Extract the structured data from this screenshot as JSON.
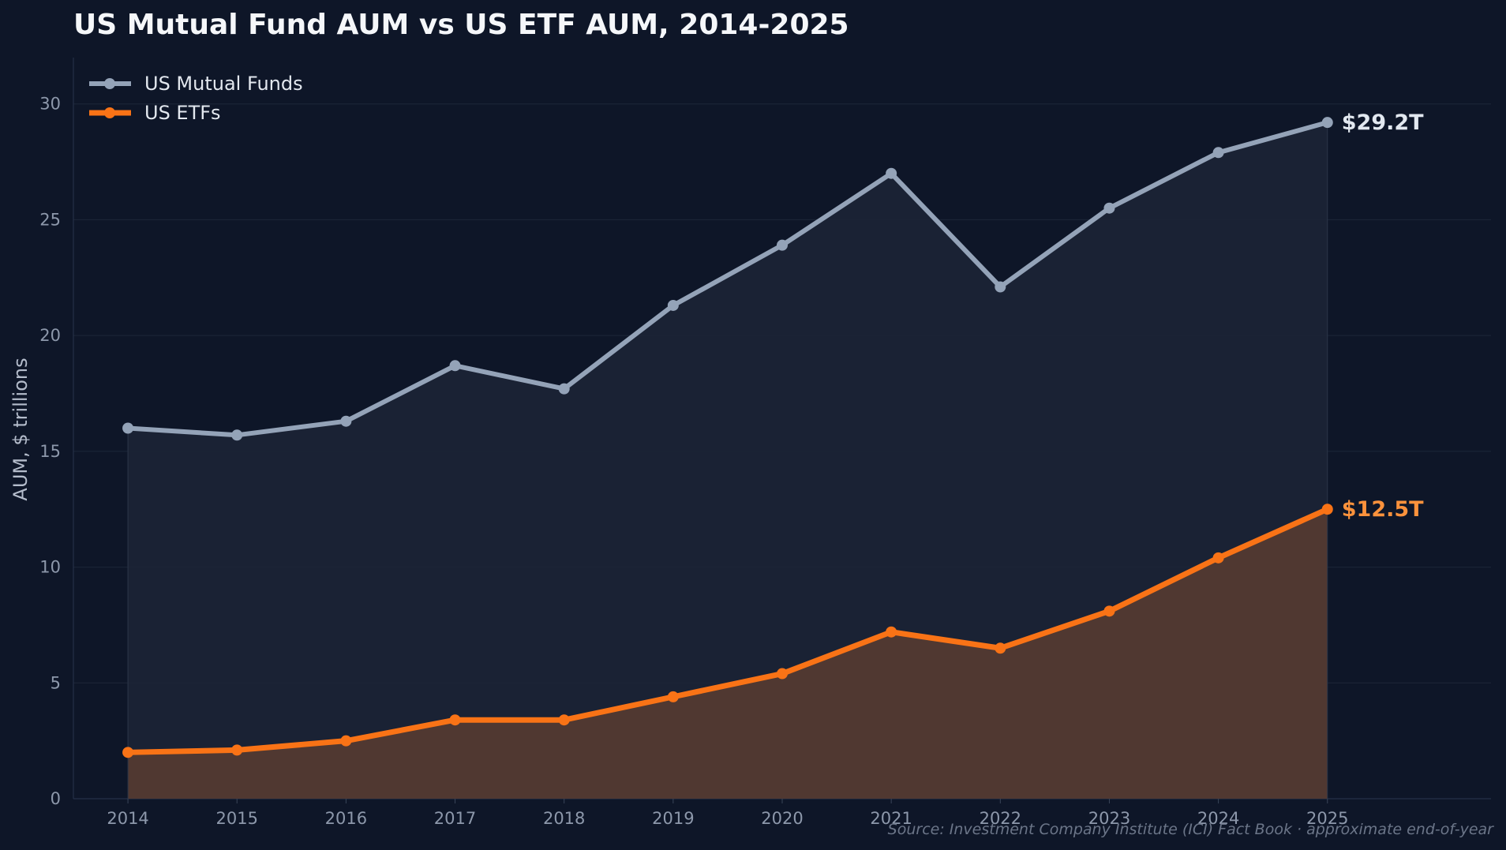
{
  "chart_data": {
    "type": "area",
    "title": "US Mutual Fund AUM vs US ETF AUM, 2014-2025",
    "xlabel": "",
    "ylabel": "AUM, $ trillions",
    "x": [
      2014,
      2015,
      2016,
      2017,
      2018,
      2019,
      2020,
      2021,
      2022,
      2023,
      2024,
      2025
    ],
    "xticks": [
      "2014",
      "2015",
      "2016",
      "2017",
      "2018",
      "2019",
      "2020",
      "2021",
      "2022",
      "2023",
      "2024",
      "2025"
    ],
    "xlim": [
      2013.5,
      2026.5
    ],
    "ylim": [
      0,
      32
    ],
    "yticks": [
      0,
      5,
      10,
      15,
      20,
      25,
      30
    ],
    "ytick_labels": [
      "0",
      "5",
      "10",
      "15",
      "20",
      "25",
      "30"
    ],
    "grid": "horizontal",
    "legend_position": "top-left",
    "series": [
      {
        "name": "US Mutual Funds",
        "color": "#94a3b8",
        "fill_color": "#1c2536",
        "values": [
          16.0,
          15.7,
          16.3,
          18.7,
          17.7,
          21.3,
          23.9,
          27.0,
          22.1,
          25.5,
          27.9,
          29.2
        ],
        "end_label": "$29.2T",
        "end_label_color": "#e2e8f0"
      },
      {
        "name": "US ETFs",
        "color": "#f97316",
        "fill_color": "#533a31",
        "values": [
          2.0,
          2.1,
          2.5,
          3.4,
          3.4,
          4.4,
          5.4,
          7.2,
          6.5,
          8.1,
          10.4,
          12.5
        ],
        "end_label": "$12.5T",
        "end_label_color": "#fb923c"
      }
    ],
    "source_note": "Source: Investment Company Institute (ICI) Fact Book · approximate end-of-year"
  }
}
